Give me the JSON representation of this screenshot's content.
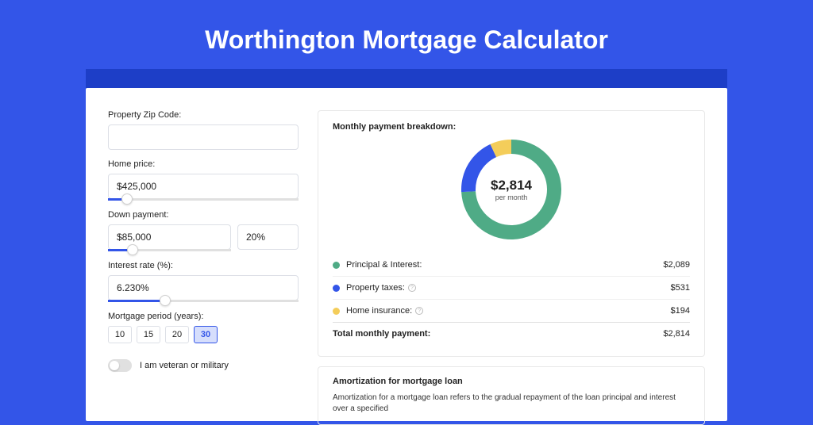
{
  "colors": {
    "page_bg": "#3355e8",
    "dark_bar": "#1d3ec7",
    "panel_bg": "#ffffff",
    "principal": "#4fab86",
    "taxes": "#3355e8",
    "insurance": "#f4cd5a"
  },
  "page": {
    "title": "Worthington Mortgage Calculator"
  },
  "form": {
    "zip_label": "Property Zip Code:",
    "zip_value": "",
    "home_price_label": "Home price:",
    "home_price_value": "$425,000",
    "home_price_slider_pct": 10,
    "down_label": "Down payment:",
    "down_value": "$85,000",
    "down_pct_value": "20%",
    "down_slider_pct": 20,
    "rate_label": "Interest rate (%):",
    "rate_value": "6.230%",
    "rate_slider_pct": 30,
    "period_label": "Mortgage period (years):",
    "periods": [
      "10",
      "15",
      "20",
      "30"
    ],
    "period_selected": "30",
    "veteran_label": "I am veteran or military"
  },
  "breakdown": {
    "title": "Monthly payment breakdown:",
    "donut": {
      "amount": "$2,814",
      "sub": "per month",
      "slices": [
        {
          "color": "#4fab86",
          "pct": 74.2
        },
        {
          "color": "#3355e8",
          "pct": 18.9
        },
        {
          "color": "#f4cd5a",
          "pct": 6.9
        }
      ],
      "thickness": 18
    },
    "rows": [
      {
        "color": "#4fab86",
        "label": "Principal & Interest:",
        "value": "$2,089",
        "info": false
      },
      {
        "color": "#3355e8",
        "label": "Property taxes:",
        "value": "$531",
        "info": true
      },
      {
        "color": "#f4cd5a",
        "label": "Home insurance:",
        "value": "$194",
        "info": true
      }
    ],
    "total_label": "Total monthly payment:",
    "total_value": "$2,814"
  },
  "amort": {
    "title": "Amortization for mortgage loan",
    "text": "Amortization for a mortgage loan refers to the gradual repayment of the loan principal and interest over a specified"
  }
}
